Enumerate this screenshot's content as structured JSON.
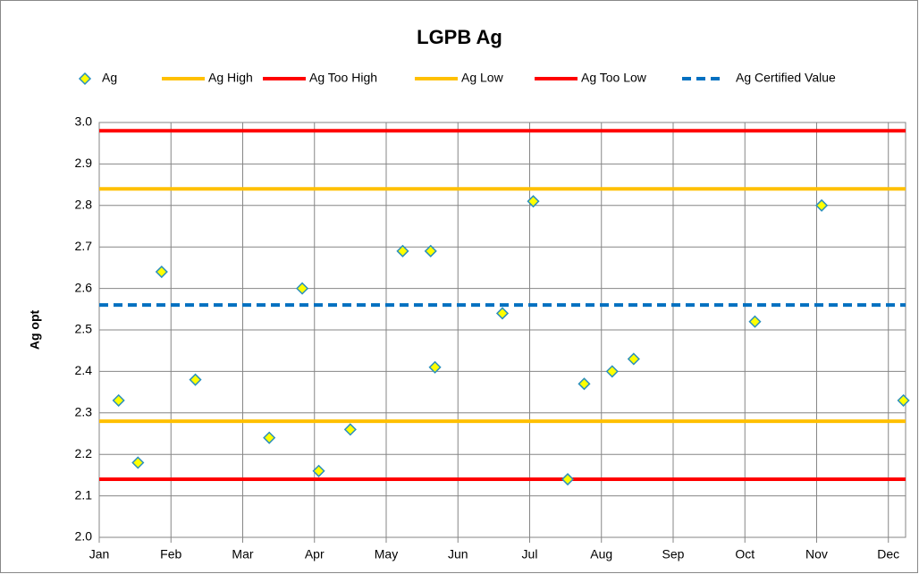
{
  "chart_data": {
    "type": "scatter",
    "title": "LGPB Ag",
    "y_label": "Ag opt",
    "xlim": [
      0,
      11.24
    ],
    "xticks": [
      {
        "value": 0,
        "label": "Jan"
      },
      {
        "value": 1,
        "label": "Feb"
      },
      {
        "value": 2,
        "label": "Mar"
      },
      {
        "value": 3,
        "label": "Apr"
      },
      {
        "value": 4,
        "label": "May"
      },
      {
        "value": 5,
        "label": "Jun"
      },
      {
        "value": 6,
        "label": "Jul"
      },
      {
        "value": 7,
        "label": "Aug"
      },
      {
        "value": 8,
        "label": "Sep"
      },
      {
        "value": 9,
        "label": "Oct"
      },
      {
        "value": 10,
        "label": "Nov"
      },
      {
        "value": 11,
        "label": "Dec"
      }
    ],
    "ylim": [
      2,
      3
    ],
    "yticks": [
      {
        "value": 2,
        "label": "2.0"
      },
      2.1,
      2.2,
      2.3,
      2.4,
      2.5,
      2.6,
      2.7,
      2.8,
      2.9,
      {
        "value": 3,
        "label": "3.0"
      }
    ],
    "grid": true,
    "legend": "top",
    "series": [
      {
        "name": "Ag",
        "kind": "points",
        "color": "#ffff00",
        "edge_color": "#2a8fbd",
        "x": [
          0.27,
          0.54,
          0.87,
          1.34,
          2.37,
          2.83,
          3.06,
          3.5,
          4.23,
          4.62,
          4.68,
          5.62,
          6.05,
          6.53,
          6.76,
          7.15,
          7.45,
          9.14,
          10.07,
          11.21
        ],
        "values": [
          2.33,
          2.18,
          2.64,
          2.38,
          2.24,
          2.6,
          2.16,
          2.26,
          2.69,
          2.69,
          2.41,
          2.54,
          2.81,
          2.14,
          2.37,
          2.4,
          2.43,
          2.52,
          2.8,
          2.33
        ]
      },
      {
        "name": "Ag High",
        "kind": "line",
        "color": "#ffc000",
        "x": [
          0,
          11.24
        ],
        "values": [
          2.84,
          2.84
        ]
      },
      {
        "name": "Ag Too High",
        "kind": "line",
        "color": "#ff0000",
        "x": [
          0,
          11.24
        ],
        "values": [
          2.98,
          2.98
        ]
      },
      {
        "name": "Ag Low",
        "kind": "line",
        "color": "#ffc000",
        "x": [
          0,
          11.24
        ],
        "values": [
          2.28,
          2.28
        ]
      },
      {
        "name": "Ag Too Low",
        "kind": "line",
        "color": "#ff0000",
        "x": [
          0,
          11.24
        ],
        "values": [
          2.14,
          2.14
        ]
      },
      {
        "name": "Ag Certified Value",
        "kind": "line",
        "dashed": true,
        "color": "#0070c0",
        "x": [
          0,
          11.24
        ],
        "values": [
          2.56,
          2.56
        ]
      }
    ]
  }
}
